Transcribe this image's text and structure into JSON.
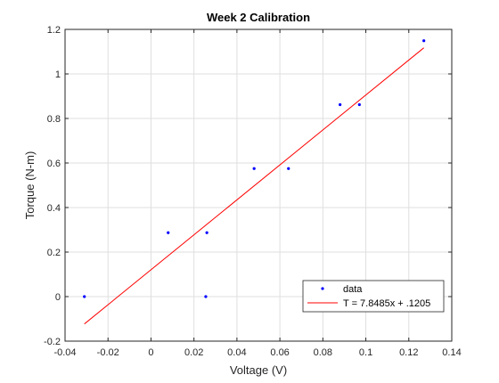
{
  "chart_data": {
    "type": "scatter",
    "title": "Week 2 Calibration",
    "xlabel": "Voltage (V)",
    "ylabel": "Torque (N-m)",
    "xlim": [
      -0.04,
      0.14
    ],
    "ylim": [
      -0.2,
      1.2
    ],
    "xticks": [
      -0.04,
      -0.02,
      0,
      0.02,
      0.04,
      0.06,
      0.08,
      0.1,
      0.12,
      0.14
    ],
    "xtick_labels": [
      "-0.04",
      "-0.02",
      "0",
      "0.02",
      "0.04",
      "0.06",
      "0.08",
      "0.1",
      "0.12",
      "0.14"
    ],
    "yticks": [
      -0.2,
      0,
      0.2,
      0.4,
      0.6,
      0.8,
      1,
      1.2
    ],
    "ytick_labels": [
      "-0.2",
      "0",
      "0.2",
      "0.4",
      "0.6",
      "0.8",
      "1",
      "1.2"
    ],
    "grid": true,
    "legend_position": "bottom-right",
    "series": [
      {
        "name": "data",
        "kind": "points",
        "color": "#0000ff",
        "x": [
          -0.031,
          0.008,
          0.0255,
          0.026,
          0.048,
          0.064,
          0.088,
          0.097,
          0.127
        ],
        "y": [
          0.0,
          0.287,
          0.0,
          0.287,
          0.575,
          0.575,
          0.862,
          0.862,
          1.149
        ]
      },
      {
        "name": "T = 7.8485x + .1205",
        "kind": "line",
        "color": "#ff0000",
        "x": [
          -0.031,
          0.127
        ],
        "y": [
          -0.1228,
          1.1173
        ]
      }
    ]
  }
}
